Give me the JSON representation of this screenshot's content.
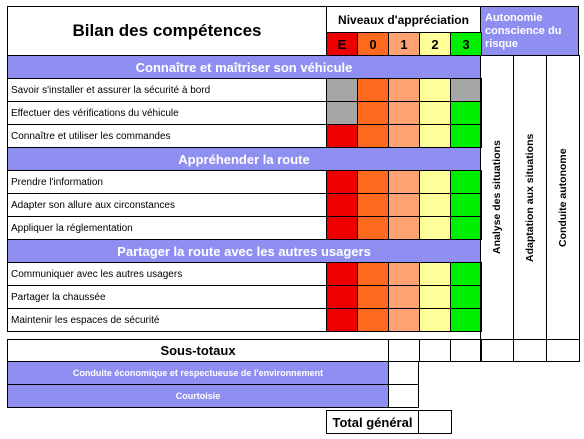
{
  "title": "Bilan des compétences",
  "levels_header": "Niveaux d'appréciation",
  "levels": [
    "E",
    "0",
    "1",
    "2",
    "3"
  ],
  "autonomy_header": "Autonomie conscience du risque",
  "autonomy_columns": [
    "Analyse des situations",
    "Adaptation aux situations",
    "Conduite autonome"
  ],
  "colors": {
    "section": "#8f8ff2",
    "red": "#ee0000",
    "orange": "#ff6a1e",
    "light_orange": "#ffa273",
    "yellow": "#ffff99",
    "green": "#00ee00",
    "gray": "#a6a6a6"
  },
  "sections": [
    {
      "title": "Connaître et maîtriser son véhicule",
      "rows": [
        {
          "label": "Savoir s'installer et assurer la sécurité à bord",
          "cells": [
            "gray",
            "orange",
            "light_orange",
            "yellow",
            "gray"
          ]
        },
        {
          "label": "Effectuer des vérifications du véhicule",
          "cells": [
            "gray",
            "orange",
            "light_orange",
            "yellow",
            "green"
          ]
        },
        {
          "label": "Connaître et utiliser les commandes",
          "cells": [
            "red",
            "orange",
            "light_orange",
            "yellow",
            "green"
          ]
        }
      ]
    },
    {
      "title": "Appréhender la route",
      "rows": [
        {
          "label": "Prendre l'information",
          "cells": [
            "red",
            "orange",
            "light_orange",
            "yellow",
            "green"
          ]
        },
        {
          "label": "Adapter son allure aux circonstances",
          "cells": [
            "red",
            "orange",
            "light_orange",
            "yellow",
            "green"
          ]
        },
        {
          "label": "Appliquer la réglementation",
          "cells": [
            "red",
            "orange",
            "light_orange",
            "yellow",
            "green"
          ]
        }
      ]
    },
    {
      "title": "Partager la route avec les autres usagers",
      "rows": [
        {
          "label": "Communiquer avec les autres usagers",
          "cells": [
            "red",
            "orange",
            "light_orange",
            "yellow",
            "green"
          ]
        },
        {
          "label": "Partager la chaussée",
          "cells": [
            "red",
            "orange",
            "light_orange",
            "yellow",
            "green"
          ]
        },
        {
          "label": "Maintenir les espaces de sécurité",
          "cells": [
            "red",
            "orange",
            "light_orange",
            "yellow",
            "green"
          ]
        }
      ]
    }
  ],
  "subtotal_label": "Sous-totaux",
  "extras": [
    "Conduite économique et respectueuse de l'environnement",
    "Courtoisie"
  ],
  "total_label": "Total général"
}
